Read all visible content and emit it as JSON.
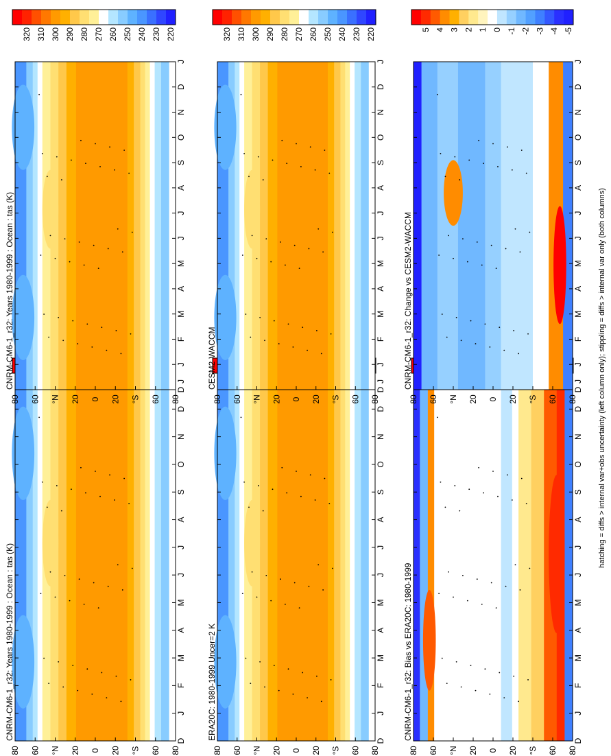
{
  "figure": {
    "footer": "hatching = diffs > internal var+obs uncertainty (left column only); stippling = diffs > internal var only (both columns)",
    "month_labels": [
      "D",
      "J",
      "F",
      "M",
      "A",
      "M",
      "J",
      "J",
      "A",
      "S",
      "O",
      "N",
      "D",
      "J"
    ],
    "lat_labels": [
      "80",
      "60",
      "°N",
      "20",
      "0",
      "20",
      "°S",
      "60",
      "80"
    ],
    "colors": {
      "abs_scale": [
        "#ff0000",
        "#ff2200",
        "#ff5000",
        "#ff7800",
        "#ff9a00",
        "#ffb000",
        "#ffc84a",
        "#ffdf72",
        "#fff098",
        "#ffffff",
        "#b4e6ff",
        "#88ccff",
        "#5eb2ff",
        "#4a96ff",
        "#3a70ff",
        "#2f46ff",
        "#2020ff"
      ],
      "diff_scale": [
        "#ff0000",
        "#ff2a00",
        "#ff5a00",
        "#ff8c00",
        "#ffb000",
        "#ffd060",
        "#ffe98e",
        "#fff4be",
        "#ffffff",
        "#c0e6ff",
        "#96d0ff",
        "#70b8ff",
        "#52a0ff",
        "#3f80ff",
        "#3458ff",
        "#2a30ff",
        "#2020ff"
      ]
    }
  },
  "chart_data": [
    {
      "id": "panel-model-left",
      "type": "heatmap",
      "title": "CNRM-CM6-1_r32: Years 1980-1999 : Ocean : tas (K)",
      "x": "month (D..J)",
      "y": "latitude (80°N..80°S)",
      "variable": "tas",
      "units": "K",
      "colorbar": {
        "ticks": [
          320,
          310,
          300,
          290,
          280,
          270,
          260,
          250,
          240,
          230,
          220
        ],
        "range": [
          215,
          325
        ]
      }
    },
    {
      "id": "panel-model-right",
      "type": "heatmap",
      "title": "CNRM-CM6-1_r32: Years 1980-1999 : Ocean : tas (K)",
      "x": "month (D..J)",
      "y": "latitude (80°N..80°S)",
      "variable": "tas",
      "units": "K",
      "colorbar": {
        "ticks": [
          320,
          310,
          300,
          290,
          280,
          270,
          260,
          250,
          240,
          230,
          220
        ],
        "range": [
          215,
          325
        ]
      }
    },
    {
      "id": "panel-era20c",
      "type": "heatmap",
      "title": "ERA20C: 1980-1999 Uncer=2 K",
      "x": "month (D..J)",
      "y": "latitude (80°N..80°S)",
      "variable": "tas",
      "units": "K",
      "colorbar": {
        "ticks": [
          320,
          310,
          300,
          290,
          280,
          270,
          260,
          250,
          240,
          230,
          220
        ],
        "range": [
          215,
          325
        ]
      }
    },
    {
      "id": "panel-cesm2",
      "type": "heatmap",
      "title": "CESM2-WACCM",
      "x": "month (D..J)",
      "y": "latitude (80°N..80°S)",
      "variable": "tas",
      "units": "K",
      "colorbar": {
        "ticks": [
          320,
          310,
          300,
          290,
          280,
          270,
          260,
          250,
          240,
          230,
          220
        ],
        "range": [
          215,
          325
        ]
      }
    },
    {
      "id": "panel-bias",
      "type": "heatmap",
      "title": "CNRM-CM6-1_r32: Bias vs ERA20C: 1980-1999",
      "x": "month (D..J)",
      "y": "latitude (80°N..80°S)",
      "variable": "tas difference",
      "units": "K",
      "colorbar": {
        "ticks": [
          5,
          4,
          3,
          2,
          1,
          0,
          -1,
          -2,
          -3,
          -4,
          -5
        ],
        "range": [
          -5.5,
          5.5
        ]
      }
    },
    {
      "id": "panel-change",
      "type": "heatmap",
      "title": "CNRM-CM6-1_r32: Change vs CESM2-WACCM",
      "x": "month (D..J)",
      "y": "latitude (80°N..80°S)",
      "variable": "tas difference",
      "units": "K",
      "colorbar": {
        "ticks": [
          5,
          4,
          3,
          2,
          1,
          0,
          -1,
          -2,
          -3,
          -4,
          -5
        ],
        "range": [
          -5.5,
          5.5
        ]
      }
    }
  ]
}
